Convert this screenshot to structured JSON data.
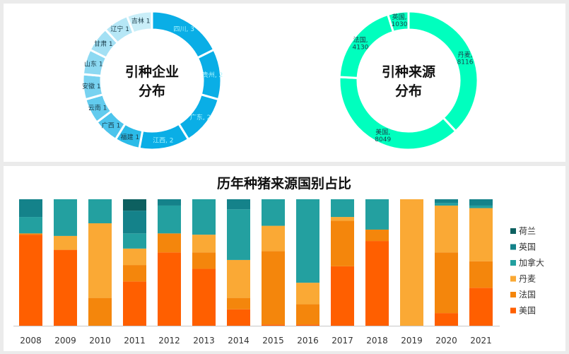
{
  "chart_data": [
    {
      "type": "donut",
      "title": "引种企业分布",
      "title_lines": [
        "引种企业",
        "分布"
      ],
      "slices": [
        {
          "label": "四川, 3",
          "value": 3,
          "color": "#0aaee6",
          "label_color": "#a9f4ff"
        },
        {
          "label": "贵州, 2",
          "value": 2,
          "color": "#0aaee6",
          "label_color": "#a9f4ff"
        },
        {
          "label": "广东, 2",
          "value": 2,
          "color": "#0aaee6",
          "label_color": "#a9f4ff"
        },
        {
          "label": "江西, 2",
          "value": 2,
          "color": "#0aaee6",
          "label_color": "#a9f4ff"
        },
        {
          "label": "福建 1",
          "value": 1,
          "color": "#2bbbe8",
          "label_color": "#1a3c4a"
        },
        {
          "label": "广西 1",
          "value": 1,
          "color": "#4cc4ec",
          "label_color": "#1a3c4a"
        },
        {
          "label": "云南 1",
          "value": 1,
          "color": "#62cbee",
          "label_color": "#1a3c4a"
        },
        {
          "label": "安徽 1",
          "value": 1,
          "color": "#78d2f0",
          "label_color": "#1a3c4a"
        },
        {
          "label": "山东 1",
          "value": 1,
          "color": "#8dd9f2",
          "label_color": "#1a3c4a"
        },
        {
          "label": "甘肃 1",
          "value": 1,
          "color": "#a3e0f4",
          "label_color": "#1a3c4a"
        },
        {
          "label": "辽宁 1",
          "value": 1,
          "color": "#b6e7f6",
          "label_color": "#1a3c4a"
        },
        {
          "label": "吉林 1",
          "value": 1,
          "color": "#c9eef8",
          "label_color": "#1a3c4a"
        }
      ]
    },
    {
      "type": "donut",
      "title": "引种来源分布",
      "title_lines": [
        "引种来源",
        "分布"
      ],
      "slices": [
        {
          "label": "丹麦,\n8116",
          "value": 8116,
          "color": "#00ffbe",
          "label_color": "#1a3c4a"
        },
        {
          "label": "美国,\n8049",
          "value": 8049,
          "color": "#00ffbe",
          "label_color": "#1a3c4a"
        },
        {
          "label": "法国,\n4130",
          "value": 4130,
          "color": "#00ffbe",
          "label_color": "#1a3c4a"
        },
        {
          "label": "英国,\n1030",
          "value": 1030,
          "color": "#00ffbe",
          "label_color": "#1a3c4a"
        }
      ]
    },
    {
      "type": "bar",
      "stacked": "100%",
      "title": "历年种猪来源国别占比",
      "categories": [
        "2008",
        "2009",
        "2010",
        "2011",
        "2012",
        "2013",
        "2014",
        "2015",
        "2016",
        "2017",
        "2018",
        "2019",
        "2020",
        "2021"
      ],
      "ylim": [
        0,
        1
      ],
      "legend_position": "right",
      "series": [
        {
          "name": "美国",
          "color": "#ff5f00",
          "values": [
            0.72,
            0.6,
            0.0,
            0.35,
            0.58,
            0.45,
            0.13,
            0.01,
            0.01,
            0.47,
            0.67,
            0.0,
            0.1,
            0.3
          ]
        },
        {
          "name": "法国",
          "color": "#f4860c",
          "values": [
            0.01,
            0.0,
            0.22,
            0.13,
            0.15,
            0.13,
            0.09,
            0.58,
            0.16,
            0.36,
            0.09,
            0.0,
            0.48,
            0.21
          ]
        },
        {
          "name": "丹麦",
          "color": "#faa935",
          "values": [
            0.0,
            0.11,
            0.59,
            0.13,
            0.0,
            0.14,
            0.3,
            0.2,
            0.17,
            0.03,
            0.0,
            1.0,
            0.37,
            0.42
          ]
        },
        {
          "name": "加拿大",
          "color": "#23a0a0",
          "values": [
            0.13,
            0.29,
            0.19,
            0.12,
            0.22,
            0.28,
            0.4,
            0.21,
            0.66,
            0.14,
            0.24,
            0.0,
            0.02,
            0.02
          ]
        },
        {
          "name": "英国",
          "color": "#14828a",
          "values": [
            0.14,
            0.0,
            0.0,
            0.18,
            0.05,
            0.0,
            0.08,
            0.0,
            0.0,
            0.0,
            0.0,
            0.0,
            0.03,
            0.05
          ]
        },
        {
          "name": "荷兰",
          "color": "#0d6060",
          "values": [
            0.0,
            0.0,
            0.0,
            0.09,
            0.0,
            0.0,
            0.0,
            0.0,
            0.0,
            0.0,
            0.0,
            0.0,
            0.0,
            0.0
          ]
        }
      ]
    }
  ]
}
